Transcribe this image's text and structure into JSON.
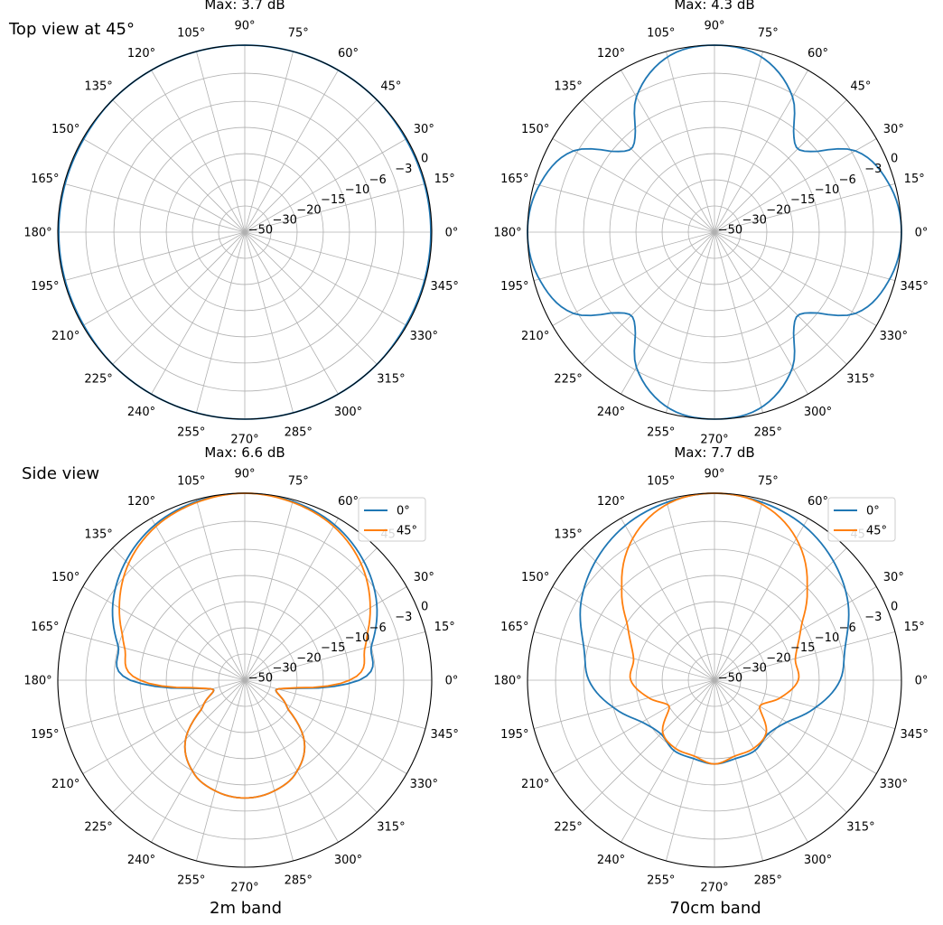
{
  "figure": {
    "row_labels": [
      "Top view at 45°",
      "Side view"
    ],
    "column_labels": [
      "2m band",
      "70cm band"
    ]
  },
  "axis": {
    "angle_ticks_deg": [
      0,
      15,
      30,
      45,
      60,
      75,
      90,
      105,
      120,
      135,
      150,
      165,
      180,
      195,
      210,
      225,
      240,
      255,
      270,
      285,
      300,
      315,
      330,
      345
    ],
    "radial_ticks": [
      -50,
      -30,
      -20,
      -15,
      -10,
      -6,
      -3,
      0
    ],
    "radial_tick_labels": [
      "−50",
      "−30",
      "−20",
      "−15",
      "−10",
      "−6",
      "−3",
      "0"
    ],
    "radial_label_angle_deg": 22.5
  },
  "colors": {
    "series_0": "#1f77b4",
    "series_45": "#ff7f0e",
    "grid": "#b0b0b0"
  },
  "chart_data": [
    {
      "type": "polar-line",
      "title": "Max: 3.7 dB",
      "row_label": "Top view at 45°",
      "column_label": "",
      "unit": "dB (relative to max)",
      "theta_deg": [
        0,
        15,
        30,
        45,
        60,
        75,
        90,
        105,
        120,
        135,
        150,
        165,
        180,
        195,
        210,
        225,
        240,
        255,
        270,
        285,
        300,
        315,
        330,
        345
      ],
      "series": [
        {
          "name": "",
          "color": "#1f77b4",
          "values": [
            -0.1,
            -0.1,
            -0.1,
            0,
            0,
            0,
            0,
            0,
            0,
            0,
            -0.1,
            -0.1,
            -0.1,
            -0.1,
            -0.1,
            0,
            0,
            0,
            0,
            0,
            0,
            0,
            -0.1,
            -0.1
          ]
        }
      ],
      "legend": null
    },
    {
      "type": "polar-line",
      "title": "Max: 4.3 dB",
      "row_label": "",
      "column_label": "",
      "unit": "dB (relative to max)",
      "theta_deg": [
        0,
        15,
        30,
        45,
        60,
        75,
        90,
        105,
        120,
        135,
        150,
        165,
        180,
        195,
        210,
        225,
        240,
        255,
        270,
        285,
        300,
        315,
        330,
        345
      ],
      "series": [
        {
          "name": "",
          "color": "#1f77b4",
          "values": [
            0,
            -0.6,
            -2.6,
            -8,
            -3.3,
            -0.6,
            0,
            -0.6,
            -3.3,
            -8,
            -2.6,
            -0.6,
            0,
            -0.6,
            -2.6,
            -8,
            -3.3,
            -0.6,
            0,
            -0.6,
            -3.3,
            -8,
            -2.6,
            -0.6
          ]
        }
      ],
      "legend": null
    },
    {
      "type": "polar-line",
      "title": "Max: 6.6 dB",
      "row_label": "Side view",
      "column_label": "2m band",
      "unit": "dB (relative to max)",
      "theta_deg": [
        0,
        15,
        30,
        45,
        60,
        75,
        90,
        105,
        120,
        135,
        150,
        165,
        180,
        195,
        210,
        225,
        240,
        255,
        270,
        285,
        300,
        315,
        330,
        345
      ],
      "series": [
        {
          "name": "0°",
          "color": "#1f77b4",
          "values": [
            -8.5,
            -6,
            -3.7,
            -2,
            -0.8,
            -0.2,
            0,
            -0.2,
            -0.8,
            -2,
            -3.7,
            -6,
            -8.5,
            -27,
            -22,
            -14,
            -10,
            -8.5,
            -8,
            -8.5,
            -10,
            -14,
            -22,
            -27
          ]
        },
        {
          "name": "45°",
          "color": "#ff7f0e",
          "values": [
            -10,
            -7,
            -4.5,
            -2.4,
            -1,
            -0.3,
            0,
            -0.3,
            -1,
            -2.4,
            -4.5,
            -7,
            -10,
            -27,
            -22,
            -14,
            -10,
            -8.5,
            -8,
            -8.5,
            -10,
            -14,
            -22,
            -27
          ]
        }
      ],
      "legend": {
        "location": "top-right",
        "entries": [
          "0°",
          "45°"
        ]
      }
    },
    {
      "type": "polar-line",
      "title": "Max: 7.7 dB",
      "row_label": "",
      "column_label": "70cm band",
      "unit": "dB (relative to max)",
      "theta_deg": [
        0,
        15,
        30,
        45,
        60,
        75,
        90,
        105,
        120,
        135,
        150,
        165,
        180,
        195,
        210,
        225,
        240,
        255,
        270,
        285,
        300,
        315,
        330,
        345
      ],
      "series": [
        {
          "name": "0°",
          "color": "#1f77b4",
          "values": [
            -6.8,
            -5.5,
            -3.5,
            -2,
            -0.9,
            -0.3,
            0,
            -0.3,
            -0.9,
            -2,
            -3.5,
            -5.5,
            -6.8,
            -10,
            -14,
            -15.5,
            -14.5,
            -14.5,
            -14,
            -14.5,
            -14.5,
            -15.5,
            -14,
            -10
          ]
        },
        {
          "name": "45°",
          "color": "#ff7f0e",
          "values": [
            -14,
            -14,
            -11,
            -6,
            -2.5,
            -0.5,
            0,
            -0.5,
            -2.5,
            -6,
            -11,
            -14,
            -14,
            -17,
            -20,
            -16,
            -15,
            -15,
            -14,
            -15,
            -15,
            -16,
            -20,
            -17
          ]
        }
      ],
      "legend": {
        "location": "top-right",
        "entries": [
          "0°",
          "45°"
        ]
      }
    }
  ]
}
